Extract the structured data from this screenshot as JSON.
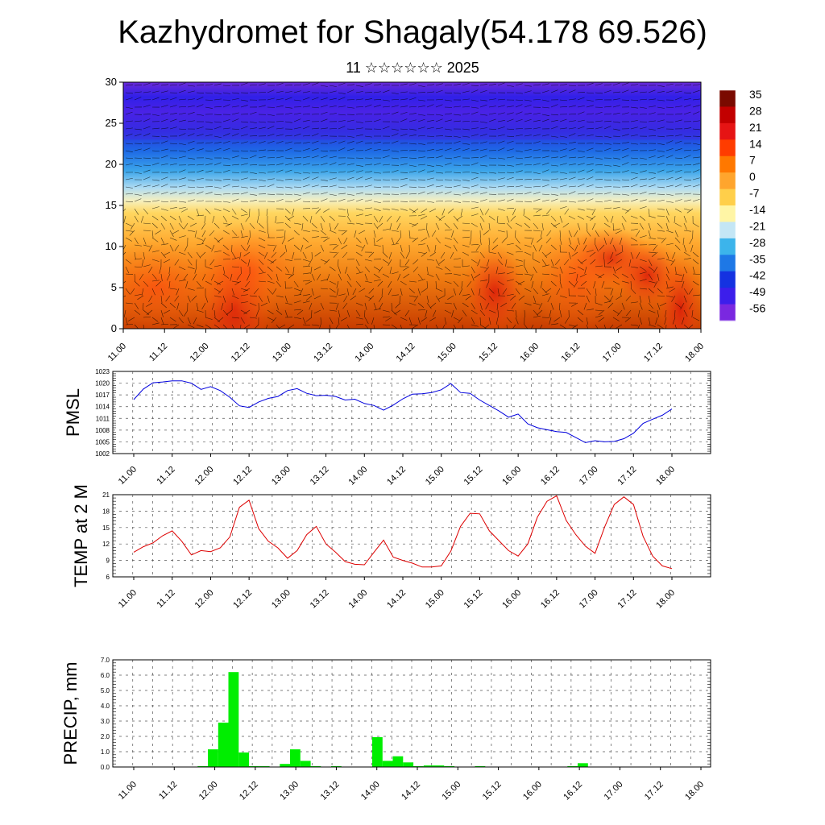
{
  "title": "Kazhydromet for Shagaly(54.178 69.526)",
  "subtitle": "11 ☆☆☆☆☆☆ 2025",
  "chart_data": [
    {
      "type": "heatmap",
      "id": "cross-section",
      "ylim": [
        0,
        30
      ],
      "yticks": [
        0,
        5,
        10,
        15,
        20,
        25,
        30
      ],
      "xlim": [
        0,
        7
      ],
      "xticks": [
        "11.00",
        "11.12",
        "12.00",
        "12.12",
        "13.00",
        "13.12",
        "14.00",
        "14.12",
        "15.00",
        "15.12",
        "16.00",
        "16.12",
        "17.00",
        "17.12",
        "18.00"
      ],
      "colorbar_labels": [
        "35",
        "28",
        "21",
        "14",
        "7",
        "0",
        "-7",
        "-14",
        "-21",
        "-28",
        "-35",
        "-42",
        "-49",
        "-56"
      ],
      "colors": [
        "#7a0a00",
        "#c20000",
        "#e61414",
        "#ff3c00",
        "#ff7800",
        "#ffa52d",
        "#ffcf4a",
        "#fff5a5",
        "#c4e6f5",
        "#3cb4eb",
        "#1e78e6",
        "#1432e1",
        "#3c1eeb",
        "#7a28e0"
      ]
    },
    {
      "type": "line",
      "id": "pmsl",
      "ylabel": "PMSL",
      "ylim": [
        1002,
        1023
      ],
      "yticks": [
        1002,
        1005,
        1008,
        1011,
        1014,
        1017,
        1020,
        1023
      ],
      "xticks": [
        "11.00",
        "11.12",
        "12.00",
        "12.12",
        "13.00",
        "13.12",
        "14.00",
        "14.12",
        "15.00",
        "15.12",
        "16.00",
        "16.12",
        "17.00",
        "17.12",
        "18.00"
      ],
      "color": "#0000dd",
      "values": [
        1015.8,
        1018.5,
        1020.1,
        1020.3,
        1020.6,
        1020.6,
        1020.0,
        1018.4,
        1019.1,
        1018.1,
        1016.4,
        1014.2,
        1013.8,
        1015.2,
        1016.1,
        1016.6,
        1018.1,
        1018.6,
        1017.4,
        1016.8,
        1016.9,
        1016.6,
        1015.7,
        1015.9,
        1014.8,
        1014.3,
        1013.1,
        1014.4,
        1016.0,
        1017.2,
        1017.3,
        1017.6,
        1018.3,
        1019.9,
        1017.6,
        1017.4,
        1015.7,
        1014.3,
        1012.9,
        1011.3,
        1012.1,
        1009.6,
        1008.6,
        1008.1,
        1007.6,
        1007.4,
        1006.1,
        1004.8,
        1005.3,
        1005.0,
        1005.1,
        1005.8,
        1007.2,
        1009.7,
        1010.8,
        1011.8,
        1013.4
      ]
    },
    {
      "type": "line",
      "id": "temp2m",
      "ylabel": "TEMP at 2 M",
      "ylim": [
        6,
        21
      ],
      "yticks": [
        6,
        9,
        12,
        15,
        18,
        21
      ],
      "xticks": [
        "11.00",
        "11.12",
        "12.00",
        "12.12",
        "13.00",
        "13.12",
        "14.00",
        "14.12",
        "15.00",
        "15.12",
        "16.00",
        "16.12",
        "17.00",
        "17.12",
        "18.00"
      ],
      "color": "#dd0000",
      "values": [
        10.5,
        11.5,
        12.2,
        13.5,
        14.4,
        12.5,
        10.0,
        10.8,
        10.6,
        11.3,
        13.3,
        18.7,
        20.0,
        14.8,
        12.5,
        11.3,
        9.4,
        10.8,
        13.7,
        15.2,
        12.0,
        10.5,
        8.8,
        8.3,
        8.2,
        10.5,
        12.7,
        9.6,
        9.0,
        8.5,
        7.8,
        7.8,
        8.0,
        10.7,
        15.2,
        17.6,
        17.5,
        14.4,
        12.6,
        10.8,
        9.8,
        12.0,
        16.9,
        19.8,
        20.8,
        16.3,
        13.7,
        11.6,
        10.3,
        15.1,
        19.2,
        20.6,
        19.2,
        13.4,
        9.8,
        8.0,
        7.5
      ]
    },
    {
      "type": "bar",
      "id": "precip",
      "ylabel": "PRECIP, mm",
      "ylim": [
        0,
        7
      ],
      "yticks": [
        "0.0",
        "1.0",
        "2.0",
        "3.0",
        "4.0",
        "5.0",
        "6.0",
        "7.0"
      ],
      "xticks": [
        "11.00",
        "11.12",
        "12.00",
        "12.12",
        "13.00",
        "13.12",
        "14.00",
        "14.12",
        "15.00",
        "15.12",
        "16.00",
        "16.12",
        "17.00",
        "17.12",
        "18.00"
      ],
      "color": "#00ee00",
      "values": [
        0,
        0,
        0,
        0,
        0,
        0,
        0,
        0.05,
        1.15,
        2.9,
        6.2,
        0.95,
        0.05,
        0.05,
        0,
        0.2,
        1.15,
        0.4,
        0.05,
        0,
        0.05,
        0,
        0,
        0,
        1.95,
        0.4,
        0.7,
        0.3,
        0.05,
        0.1,
        0.1,
        0.05,
        0,
        0,
        0.05,
        0,
        0,
        0,
        0,
        0,
        0,
        0,
        0,
        0.05,
        0.25,
        0,
        0,
        0,
        0,
        0,
        0,
        0,
        0,
        0,
        0,
        0
      ]
    }
  ]
}
